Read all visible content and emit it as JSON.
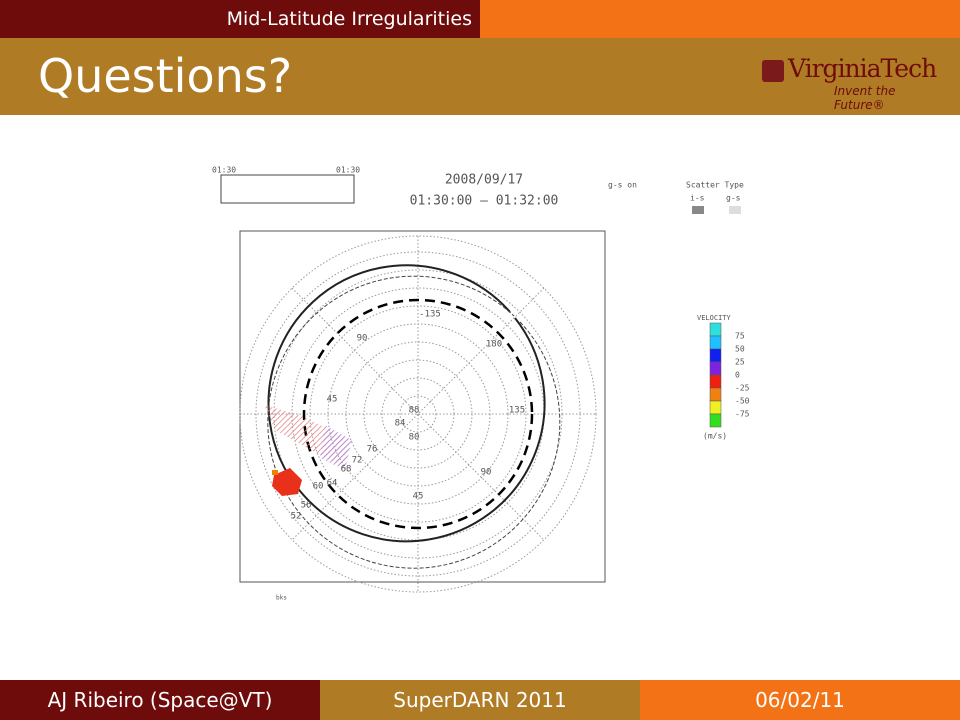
{
  "header": {
    "section": "Mid-Latitude Irregularities",
    "title": "Questions?",
    "logo": {
      "name": "VirginiaTech",
      "tagline": "Invent the Future®"
    }
  },
  "figure": {
    "time_box": {
      "start": "01:30",
      "end": "01:30"
    },
    "date": "2008/09/17",
    "time_range": "01:30:00 – 01:32:00",
    "gs_flag": "g-s on",
    "scatter_type": {
      "title": "Scatter Type",
      "is": "i-s",
      "gs": "g-s"
    },
    "latitudes": [
      "88",
      "84",
      "80",
      "76",
      "72",
      "68",
      "64",
      "60",
      "56",
      "52"
    ],
    "longitudes": [
      "-135",
      "180",
      "135",
      "90",
      "45",
      "90",
      "45"
    ],
    "velocity": {
      "title": "VELOCITY",
      "levels": [
        "75",
        "50",
        "25",
        "0",
        "-25",
        "-50",
        "-75"
      ],
      "unit": "(m/s)"
    },
    "station": "bks"
  },
  "footer": {
    "author": "AJ Ribeiro (Space@VT)",
    "event": "SuperDARN 2011",
    "date": "06/02/11"
  }
}
